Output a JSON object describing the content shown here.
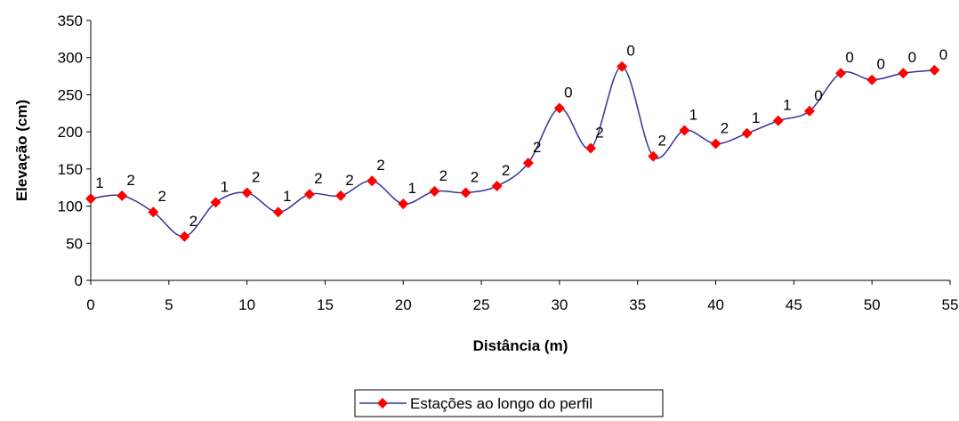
{
  "chart_data": {
    "type": "line",
    "xlabel": "Distância (m)",
    "ylabel": "Elevação (cm)",
    "xlim": [
      0,
      55
    ],
    "ylim": [
      0,
      350
    ],
    "xticks": [
      0,
      5,
      10,
      15,
      20,
      25,
      30,
      35,
      40,
      45,
      50,
      55
    ],
    "yticks": [
      0,
      50,
      100,
      150,
      200,
      250,
      300,
      350
    ],
    "grid": false,
    "legend": "bottom-center",
    "colors": {
      "line": "#333399",
      "marker": "#ff0000"
    },
    "series": [
      {
        "name": "Estações ao longo do perfil",
        "x": [
          0,
          2,
          4,
          6,
          8,
          10,
          12,
          14,
          16,
          18,
          20,
          22,
          24,
          26,
          28,
          30,
          32,
          34,
          36,
          38,
          40,
          42,
          44,
          46,
          48,
          50,
          52,
          54
        ],
        "y": [
          110,
          114,
          92,
          59,
          105,
          118,
          92,
          116,
          114,
          134,
          103,
          120,
          118,
          127,
          158,
          232,
          178,
          288,
          167,
          202,
          184,
          198,
          215,
          228,
          279,
          270,
          279,
          283
        ],
        "labels": [
          "1",
          "2",
          "2",
          "2",
          "1",
          "2",
          "1",
          "2",
          "2",
          "2",
          "1",
          "2",
          "2",
          "2",
          "2",
          "0",
          "2",
          "0",
          "2",
          "1",
          "2",
          "1",
          "1",
          "0",
          "0",
          "0",
          "0",
          "0"
        ]
      }
    ]
  }
}
